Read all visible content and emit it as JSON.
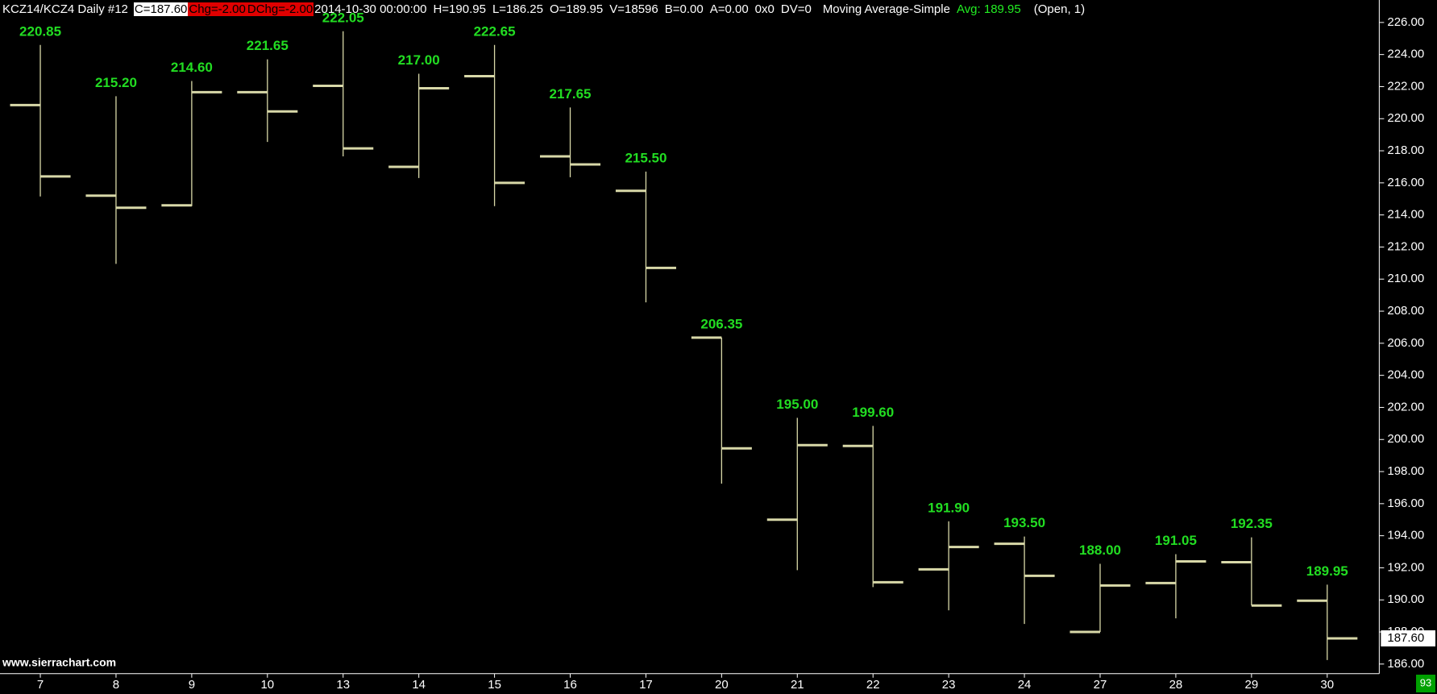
{
  "chart_data": {
    "type": "ohlc",
    "header": [
      "KCZ14/KCZ4  Daily  #12",
      "C=187.60",
      "Chg=-2.00",
      "DChg=-2.00",
      "2014-10-30 00:00:00",
      "H=190.95",
      "L=186.25",
      "O=189.95",
      "V=18596",
      "B=0.00",
      "A=0.00",
      "0x0",
      "DV=0",
      "Moving Average-Simple",
      "Avg: 189.95",
      "(Open, 1)"
    ],
    "watermark": "www.sierrachart.com",
    "corner_label": "93",
    "last_price_label": "187.60",
    "categories": [
      "7",
      "8",
      "9",
      "10",
      "13",
      "14",
      "15",
      "16",
      "17",
      "20",
      "21",
      "22",
      "23",
      "24",
      "27",
      "28",
      "29",
      "30"
    ],
    "open": [
      220.85,
      215.2,
      214.6,
      221.65,
      222.05,
      217.0,
      222.65,
      217.65,
      215.5,
      206.35,
      195.0,
      199.6,
      191.9,
      193.5,
      188.0,
      191.05,
      192.35,
      189.95
    ],
    "high": [
      224.6,
      221.4,
      222.35,
      223.7,
      225.45,
      222.8,
      224.6,
      220.7,
      216.7,
      206.35,
      201.35,
      200.85,
      194.9,
      193.95,
      192.25,
      192.85,
      193.9,
      190.95
    ],
    "low": [
      215.15,
      210.95,
      214.55,
      218.55,
      217.65,
      216.3,
      214.55,
      216.35,
      208.55,
      197.25,
      191.85,
      190.8,
      189.35,
      188.5,
      188.0,
      188.85,
      189.65,
      186.25
    ],
    "close": [
      216.4,
      214.45,
      221.65,
      220.45,
      218.15,
      221.9,
      216.0,
      217.15,
      210.7,
      199.45,
      199.65,
      191.1,
      193.3,
      191.5,
      190.9,
      192.4,
      189.65,
      187.6
    ],
    "value_labels": [
      "220.85",
      "215.20",
      "214.60",
      "221.65",
      "222.05",
      "217.00",
      "222.65",
      "217.65",
      "215.50",
      "206.35",
      "195.00",
      "199.60",
      "191.90",
      "193.50",
      "188.00",
      "191.05",
      "192.35",
      "189.95"
    ],
    "color": "#d8d8a8",
    "label_color": "#22dd22",
    "ylim": [
      185.4,
      227.4
    ],
    "yticks": [
      {
        "value": 186,
        "label": "186.00"
      },
      {
        "value": 188,
        "label": "188.00"
      },
      {
        "value": 190,
        "label": "190.00"
      },
      {
        "value": 192,
        "label": "192.00"
      },
      {
        "value": 194,
        "label": "194.00"
      },
      {
        "value": 196,
        "label": "196.00"
      },
      {
        "value": 198,
        "label": "198.00"
      },
      {
        "value": 200,
        "label": "200.00"
      },
      {
        "value": 202,
        "label": "202.00"
      },
      {
        "value": 204,
        "label": "204.00"
      },
      {
        "value": 206,
        "label": "206.00"
      },
      {
        "value": 208,
        "label": "208.00"
      },
      {
        "value": 210,
        "label": "210.00"
      },
      {
        "value": 212,
        "label": "212.00"
      },
      {
        "value": 214,
        "label": "214.00"
      },
      {
        "value": 216,
        "label": "216.00"
      },
      {
        "value": 218,
        "label": "218.00"
      },
      {
        "value": 220,
        "label": "220.00"
      },
      {
        "value": 222,
        "label": "222.00"
      },
      {
        "value": 224,
        "label": "224.00"
      },
      {
        "value": 226,
        "label": "226.00"
      }
    ]
  }
}
